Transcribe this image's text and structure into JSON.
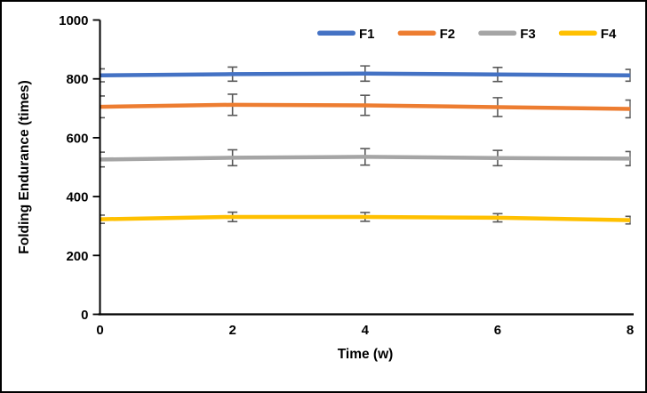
{
  "figure": {
    "background": "#ffffff",
    "border_color": "#000000"
  },
  "chart_data": {
    "type": "line",
    "title": "",
    "xlabel": "Time (w)",
    "ylabel": "Folding Endurance (times)",
    "x": [
      0,
      2,
      4,
      6,
      8
    ],
    "x_tick_labels": [
      "0",
      "2",
      "4",
      "6",
      "8"
    ],
    "y_tick_values": [
      0,
      200,
      400,
      600,
      800,
      1000
    ],
    "y_tick_labels": [
      "0",
      "200",
      "400",
      "600",
      "800",
      "1000"
    ],
    "xlim": [
      0,
      8
    ],
    "ylim": [
      0,
      1000
    ],
    "grid": false,
    "legend_position": "top",
    "axis_color": "#000000",
    "error_bar_color": "#595959",
    "series": [
      {
        "name": "F1",
        "color": "#4472C4",
        "values": [
          812,
          816,
          818,
          815,
          812
        ],
        "errors": [
          22,
          24,
          26,
          24,
          20
        ]
      },
      {
        "name": "F2",
        "color": "#ED7D31",
        "values": [
          705,
          712,
          710,
          704,
          698
        ],
        "errors": [
          37,
          36,
          34,
          32,
          30
        ]
      },
      {
        "name": "F3",
        "color": "#A5A5A5",
        "values": [
          526,
          532,
          535,
          531,
          529
        ],
        "errors": [
          25,
          27,
          28,
          26,
          24
        ]
      },
      {
        "name": "F4",
        "color": "#FFC000",
        "values": [
          323,
          331,
          331,
          328,
          320
        ],
        "errors": [
          14,
          16,
          15,
          14,
          13
        ]
      }
    ]
  }
}
